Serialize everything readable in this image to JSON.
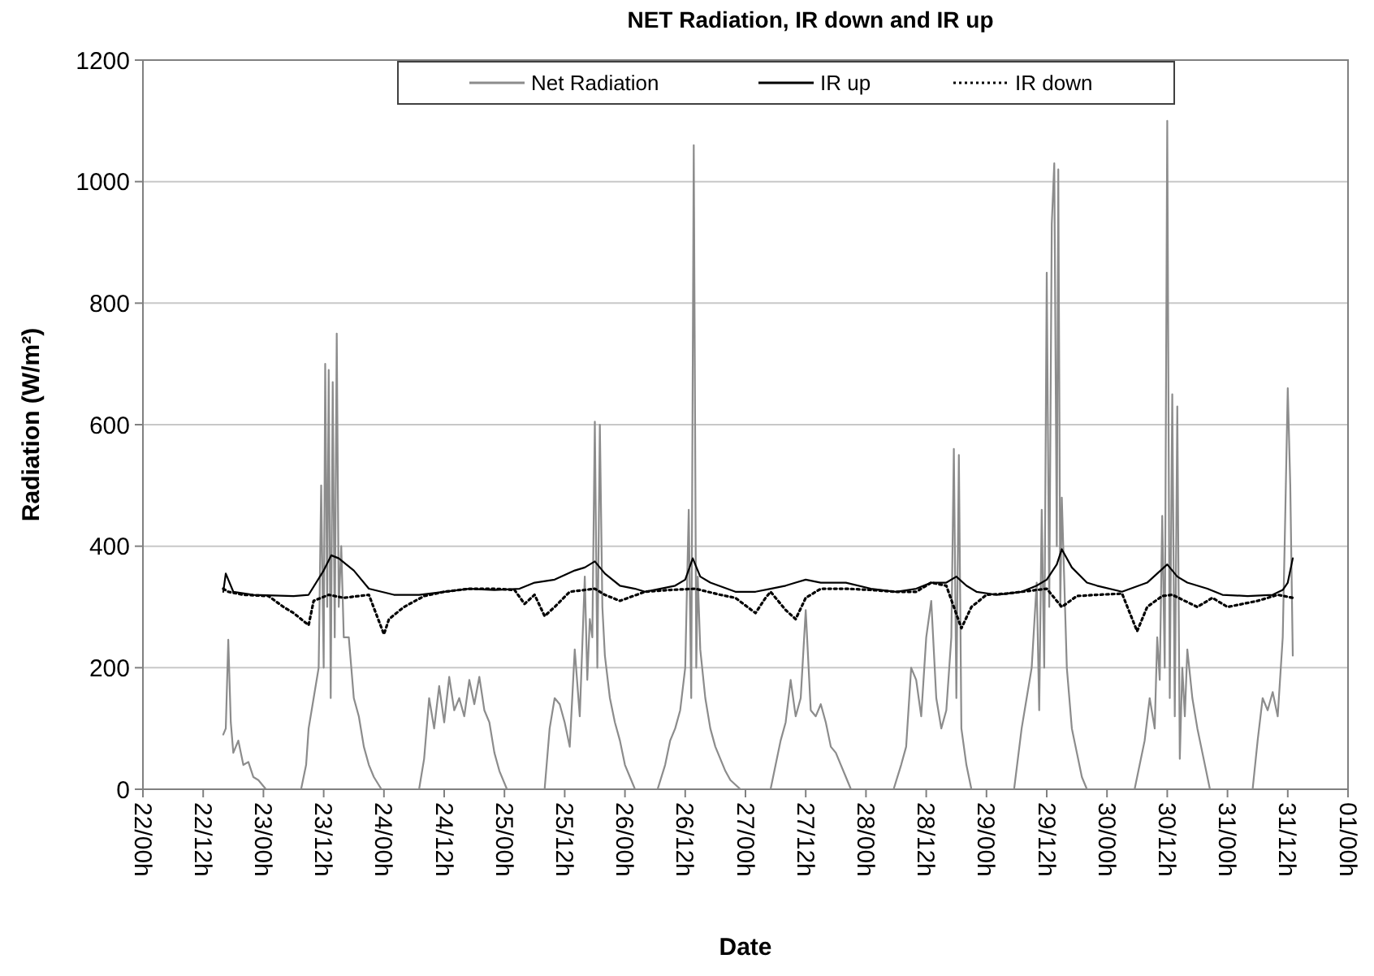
{
  "chart_data": {
    "type": "line",
    "title": "NET Radiation, IR down and IR up",
    "xlabel": "Date",
    "ylabel": "Radiation (W/m²)",
    "xlim": [
      "--01-22T00:00",
      "--02-01T00:00"
    ],
    "xticks": [
      {
        "value": "--01-22T00:00",
        "label": "22/00h"
      },
      {
        "value": "--01-22T12:00",
        "label": "22/12h"
      },
      {
        "value": "--01-23T00:00",
        "label": "23/00h"
      },
      {
        "value": "--01-23T12:00",
        "label": "23/12h"
      },
      {
        "value": "--01-24T00:00",
        "label": "24/00h"
      },
      {
        "value": "--01-24T12:00",
        "label": "24/12h"
      },
      {
        "value": "--01-25T00:00",
        "label": "25/00h"
      },
      {
        "value": "--01-25T12:00",
        "label": "25/12h"
      },
      {
        "value": "--01-26T00:00",
        "label": "26/00h"
      },
      {
        "value": "--01-26T12:00",
        "label": "26/12h"
      },
      {
        "value": "--01-27T00:00",
        "label": "27/00h"
      },
      {
        "value": "--01-27T12:00",
        "label": "27/12h"
      },
      {
        "value": "--01-28T00:00",
        "label": "28/00h"
      },
      {
        "value": "--01-28T12:00",
        "label": "28/12h"
      },
      {
        "value": "--01-29T00:00",
        "label": "29/00h"
      },
      {
        "value": "--01-29T12:00",
        "label": "29/12h"
      },
      {
        "value": "--01-30T00:00",
        "label": "30/00h"
      },
      {
        "value": "--01-30T12:00",
        "label": "30/12h"
      },
      {
        "value": "--01-31T00:00",
        "label": "31/00h"
      },
      {
        "value": "--01-31T12:00",
        "label": "31/12h"
      },
      {
        "value": "--02-01T00:00",
        "label": "01/00h"
      }
    ],
    "ylim": [
      0,
      1200
    ],
    "yticks": [
      0,
      200,
      400,
      600,
      800,
      1000,
      1200
    ],
    "grid": "y",
    "legend": "top",
    "marker": "none",
    "series": [
      {
        "name": "Net Radiation",
        "color": "#8c8c8c",
        "line_style": "solid",
        "x": [
          "--01-22T16:00",
          "--01-22T16:30",
          "--01-22T17:00",
          "--01-22T17:30",
          "--01-22T18:00",
          "--01-22T19:00",
          "--01-22T20:00",
          "--01-22T21:00",
          "--01-22T22:00",
          "--01-22T23:00",
          "--01-23T00:30",
          "--01-23T07:30",
          "--01-23T08:30",
          "--01-23T09:00",
          "--01-23T10:00",
          "--01-23T11:00",
          "--01-23T11:30",
          "--01-23T12:00",
          "--01-23T12:18",
          "--01-23T12:42",
          "--01-23T13:00",
          "--01-23T13:24",
          "--01-23T13:48",
          "--01-23T14:12",
          "--01-23T14:36",
          "--01-23T15:00",
          "--01-23T15:30",
          "--01-23T16:00",
          "--01-23T17:00",
          "--01-23T18:00",
          "--01-23T19:00",
          "--01-23T20:00",
          "--01-23T21:00",
          "--01-23T22:00",
          "--01-23T23:30",
          "--01-24T07:00",
          "--01-24T08:00",
          "--01-24T09:00",
          "--01-24T10:00",
          "--01-24T11:00",
          "--01-24T12:00",
          "--01-24T13:00",
          "--01-24T14:00",
          "--01-24T15:00",
          "--01-24T16:00",
          "--01-24T17:00",
          "--01-24T18:00",
          "--01-24T19:00",
          "--01-24T20:00",
          "--01-24T21:00",
          "--01-24T22:00",
          "--01-24T23:00",
          "--01-25T00:30",
          "--01-25T08:00",
          "--01-25T09:00",
          "--01-25T10:00",
          "--01-25T11:00",
          "--01-25T12:00",
          "--01-25T13:00",
          "--01-25T14:00",
          "--01-25T15:00",
          "--01-25T16:00",
          "--01-25T16:30",
          "--01-25T17:00",
          "--01-25T17:30",
          "--01-25T18:00",
          "--01-25T18:30",
          "--01-25T19:00",
          "--01-25T19:30",
          "--01-25T20:00",
          "--01-25T21:00",
          "--01-25T22:00",
          "--01-25T23:00",
          "--01-26T00:00",
          "--01-26T01:00",
          "--01-26T02:00",
          "--01-26T06:30",
          "--01-26T08:00",
          "--01-26T09:00",
          "--01-26T10:00",
          "--01-26T11:00",
          "--01-26T12:00",
          "--01-26T12:42",
          "--01-26T13:12",
          "--01-26T13:42",
          "--01-26T14:12",
          "--01-26T14:30",
          "--01-26T15:00",
          "--01-26T16:00",
          "--01-26T17:00",
          "--01-26T18:00",
          "--01-26T19:00",
          "--01-26T20:00",
          "--01-26T21:00",
          "--01-26T23:00",
          "--01-27T05:00",
          "--01-27T06:00",
          "--01-27T07:00",
          "--01-27T08:00",
          "--01-27T09:00",
          "--01-27T10:00",
          "--01-27T11:00",
          "--01-27T12:00",
          "--01-27T13:00",
          "--01-27T14:00",
          "--01-27T15:00",
          "--01-27T16:00",
          "--01-27T17:00",
          "--01-27T18:00",
          "--01-27T19:00",
          "--01-27T20:00",
          "--01-27T21:00",
          "--01-28T05:30",
          "--01-28T07:00",
          "--01-28T08:00",
          "--01-28T09:00",
          "--01-28T10:00",
          "--01-28T11:00",
          "--01-28T12:00",
          "--01-28T13:00",
          "--01-28T14:00",
          "--01-28T15:00",
          "--01-28T16:00",
          "--01-28T17:00",
          "--01-28T17:30",
          "--01-28T18:00",
          "--01-28T18:30",
          "--01-28T19:00",
          "--01-28T20:00",
          "--01-28T21:00",
          "--01-29T05:30",
          "--01-29T07:00",
          "--01-29T08:00",
          "--01-29T09:00",
          "--01-29T10:00",
          "--01-29T10:30",
          "--01-29T11:00",
          "--01-29T11:30",
          "--01-29T12:00",
          "--01-29T12:30",
          "--01-29T13:00",
          "--01-29T13:30",
          "--01-29T14:00",
          "--01-29T14:18",
          "--01-29T14:42",
          "--01-29T15:00",
          "--01-29T16:00",
          "--01-29T17:00",
          "--01-29T18:00",
          "--01-29T19:00",
          "--01-29T20:00",
          "--01-30T05:30",
          "--01-30T06:30",
          "--01-30T07:30",
          "--01-30T08:30",
          "--01-30T09:30",
          "--01-30T10:00",
          "--01-30T10:30",
          "--01-30T11:00",
          "--01-30T11:30",
          "--01-30T12:00",
          "--01-30T12:30",
          "--01-30T13:00",
          "--01-30T13:30",
          "--01-30T14:00",
          "--01-30T14:30",
          "--01-30T15:00",
          "--01-30T15:30",
          "--01-30T16:00",
          "--01-30T17:00",
          "--01-30T18:00",
          "--01-30T19:00",
          "--01-30T20:30",
          "--01-31T05:00",
          "--01-31T06:00",
          "--01-31T07:00",
          "--01-31T08:00",
          "--01-31T09:00",
          "--01-31T10:00",
          "--01-31T11:00",
          "--01-31T11:30",
          "--01-31T12:00",
          "--01-31T12:30",
          "--01-31T13:00"
        ],
        "values": [
          90,
          100,
          246,
          110,
          60,
          80,
          40,
          45,
          20,
          15,
          0,
          0,
          40,
          100,
          150,
          200,
          500,
          200,
          700,
          300,
          690,
          150,
          670,
          250,
          750,
          300,
          400,
          250,
          250,
          150,
          120,
          70,
          40,
          20,
          0,
          0,
          50,
          150,
          100,
          170,
          110,
          185,
          130,
          150,
          120,
          180,
          140,
          185,
          130,
          110,
          60,
          30,
          0,
          0,
          100,
          150,
          140,
          110,
          70,
          230,
          120,
          350,
          180,
          280,
          250,
          605,
          200,
          600,
          300,
          220,
          150,
          110,
          80,
          40,
          20,
          0,
          0,
          40,
          80,
          100,
          130,
          200,
          460,
          150,
          1060,
          200,
          350,
          230,
          150,
          100,
          70,
          50,
          30,
          15,
          0,
          0,
          40,
          80,
          110,
          180,
          120,
          150,
          295,
          130,
          120,
          140,
          110,
          70,
          60,
          40,
          20,
          0,
          0,
          40,
          70,
          200,
          180,
          120,
          250,
          310,
          150,
          100,
          130,
          250,
          560,
          150,
          550,
          100,
          40,
          0,
          0,
          100,
          150,
          200,
          340,
          130,
          460,
          200,
          850,
          300,
          930,
          1030,
          400,
          1020,
          300,
          480,
          200,
          100,
          60,
          20,
          0,
          0,
          40,
          80,
          150,
          100,
          250,
          180,
          450,
          200,
          1100,
          150,
          650,
          120,
          630,
          50,
          200,
          120,
          230,
          150,
          100,
          60,
          0,
          0,
          80,
          150,
          130,
          160,
          120,
          250,
          450,
          660,
          500,
          220
        ]
      },
      {
        "name": "IR up",
        "color": "#000000",
        "line_style": "solid",
        "x": [
          "--01-22T16:00",
          "--01-22T16:30",
          "--01-22T18:00",
          "--01-22T22:00",
          "--01-23T06:00",
          "--01-23T09:00",
          "--01-23T12:00",
          "--01-23T13:30",
          "--01-23T15:00",
          "--01-23T18:00",
          "--01-23T21:00",
          "--01-24T02:00",
          "--01-24T07:00",
          "--01-24T12:00",
          "--01-24T17:00",
          "--01-24T22:00",
          "--01-25T03:00",
          "--01-25T06:00",
          "--01-25T10:00",
          "--01-25T14:00",
          "--01-25T16:00",
          "--01-25T18:00",
          "--01-25T20:00",
          "--01-25T23:00",
          "--01-26T02:00",
          "--01-26T04:00",
          "--01-26T07:00",
          "--01-26T10:00",
          "--01-26T12:00",
          "--01-26T13:30",
          "--01-26T15:00",
          "--01-26T17:00",
          "--01-26T22:00",
          "--01-27T02:00",
          "--01-27T05:00",
          "--01-27T08:00",
          "--01-27T10:00",
          "--01-27T12:00",
          "--01-27T15:00",
          "--01-27T20:00",
          "--01-28T01:00",
          "--01-28T06:00",
          "--01-28T10:00",
          "--01-28T13:00",
          "--01-28T16:00",
          "--01-28T18:00",
          "--01-28T20:00",
          "--01-28T22:00",
          "--01-29T02:00",
          "--01-29T07:00",
          "--01-29T10:00",
          "--01-29T12:00",
          "--01-29T14:00",
          "--01-29T15:00",
          "--01-29T17:00",
          "--01-29T20:00",
          "--01-29T22:00",
          "--01-30T03:00",
          "--01-30T08:00",
          "--01-30T10:00",
          "--01-30T12:00",
          "--01-30T14:00",
          "--01-30T16:00",
          "--01-30T20:00",
          "--01-30T23:00",
          "--01-31T04:00",
          "--01-31T09:00",
          "--01-31T11:00",
          "--01-31T12:00",
          "--01-31T13:00"
        ],
        "values": [
          325,
          355,
          325,
          320,
          318,
          320,
          360,
          385,
          380,
          360,
          330,
          320,
          320,
          325,
          330,
          328,
          330,
          340,
          345,
          360,
          365,
          375,
          355,
          335,
          330,
          325,
          330,
          335,
          345,
          380,
          350,
          340,
          325,
          325,
          330,
          335,
          340,
          345,
          340,
          340,
          330,
          325,
          330,
          340,
          340,
          350,
          335,
          325,
          320,
          325,
          335,
          345,
          370,
          395,
          365,
          340,
          335,
          325,
          340,
          355,
          370,
          350,
          340,
          330,
          320,
          318,
          320,
          328,
          340,
          380
        ]
      },
      {
        "name": "IR down",
        "color": "#000000",
        "line_style": "dotted",
        "x": [
          "--01-22T16:00",
          "--01-22T17:00",
          "--01-22T20:00",
          "--01-23T01:00",
          "--01-23T04:00",
          "--01-23T06:00",
          "--01-23T09:00",
          "--01-23T10:00",
          "--01-23T13:00",
          "--01-23T16:00",
          "--01-23T21:00",
          "--01-24T00:00",
          "--01-24T01:00",
          "--01-24T04:00",
          "--01-24T08:00",
          "--01-24T12:00",
          "--01-24T17:00",
          "--01-24T22:00",
          "--01-25T02:00",
          "--01-25T04:00",
          "--01-25T06:00",
          "--01-25T08:00",
          "--01-25T10:00",
          "--01-25T13:00",
          "--01-25T18:00",
          "--01-25T20:00",
          "--01-25T23:00",
          "--01-26T04:00",
          "--01-26T09:00",
          "--01-26T14:00",
          "--01-26T19:00",
          "--01-26T22:00",
          "--01-27T02:00",
          "--01-27T04:00",
          "--01-27T05:00",
          "--01-27T08:00",
          "--01-27T10:00",
          "--01-27T12:00",
          "--01-27T15:00",
          "--01-27T20:00",
          "--01-28T01:00",
          "--01-28T06:00",
          "--01-28T10:00",
          "--01-28T13:00",
          "--01-28T16:00",
          "--01-28T19:00",
          "--01-28T21:00",
          "--01-29T00:00",
          "--01-29T04:00",
          "--01-29T07:00",
          "--01-29T12:00",
          "--01-29T15:00",
          "--01-29T18:00",
          "--01-29T22:00",
          "--01-30T03:00",
          "--01-30T06:00",
          "--01-30T08:00",
          "--01-30T11:00",
          "--01-30T13:00",
          "--01-30T18:00",
          "--01-30T21:00",
          "--01-31T00:00",
          "--01-31T03:00",
          "--01-31T06:00",
          "--01-31T10:00",
          "--01-31T13:00"
        ],
        "values": [
          330,
          325,
          320,
          318,
          300,
          290,
          270,
          310,
          320,
          315,
          320,
          255,
          280,
          300,
          318,
          325,
          330,
          330,
          328,
          305,
          320,
          285,
          300,
          325,
          330,
          320,
          310,
          325,
          328,
          330,
          320,
          315,
          290,
          315,
          325,
          295,
          280,
          315,
          330,
          330,
          328,
          325,
          325,
          340,
          335,
          265,
          300,
          320,
          322,
          325,
          330,
          300,
          318,
          320,
          322,
          260,
          300,
          318,
          320,
          300,
          315,
          300,
          305,
          310,
          320,
          315
        ]
      }
    ]
  }
}
